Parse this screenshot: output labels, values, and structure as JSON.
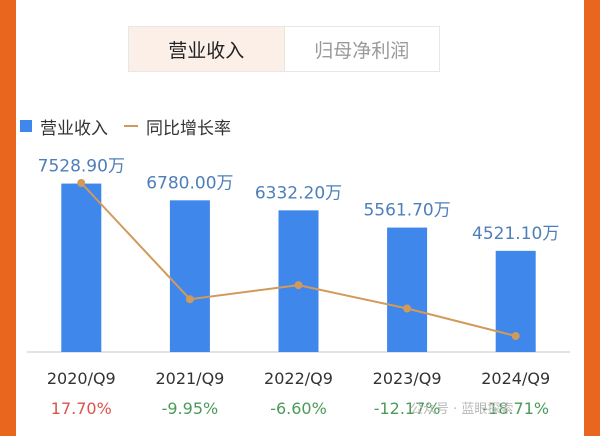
{
  "tabs": [
    {
      "label": "营业收入",
      "active": true
    },
    {
      "label": "归母净利润",
      "active": false
    }
  ],
  "legend": {
    "bar_label": "营业收入",
    "line_label": "同比增长率"
  },
  "colors": {
    "bar": "#3f87ea",
    "line": "#d29a5a",
    "positive": "#d9544d",
    "negative": "#4a9b5a",
    "value_label": "#4d7fb8",
    "axis_text": "#333333",
    "frame": "#e9661f"
  },
  "chart_data": {
    "type": "bar",
    "categories": [
      "2020/Q9",
      "2021/Q9",
      "2022/Q9",
      "2023/Q9",
      "2024/Q9"
    ],
    "series": [
      {
        "name": "营业收入",
        "type": "bar",
        "values": [
          7528.9,
          6780.0,
          6332.2,
          5561.7,
          4521.1
        ],
        "labels": [
          "7528.90万",
          "6780.00万",
          "6332.20万",
          "5561.70万",
          "4521.10万"
        ]
      },
      {
        "name": "同比增长率",
        "type": "line",
        "values": [
          17.7,
          -9.95,
          -6.6,
          -12.17,
          -18.71
        ],
        "labels": [
          "17.70%",
          "-9.95%",
          "-6.60%",
          "-12.17%",
          "-18.71%"
        ]
      }
    ],
    "legend_position": "top-left",
    "grid": false
  },
  "watermark": "公众号 · 蓝眼探索"
}
